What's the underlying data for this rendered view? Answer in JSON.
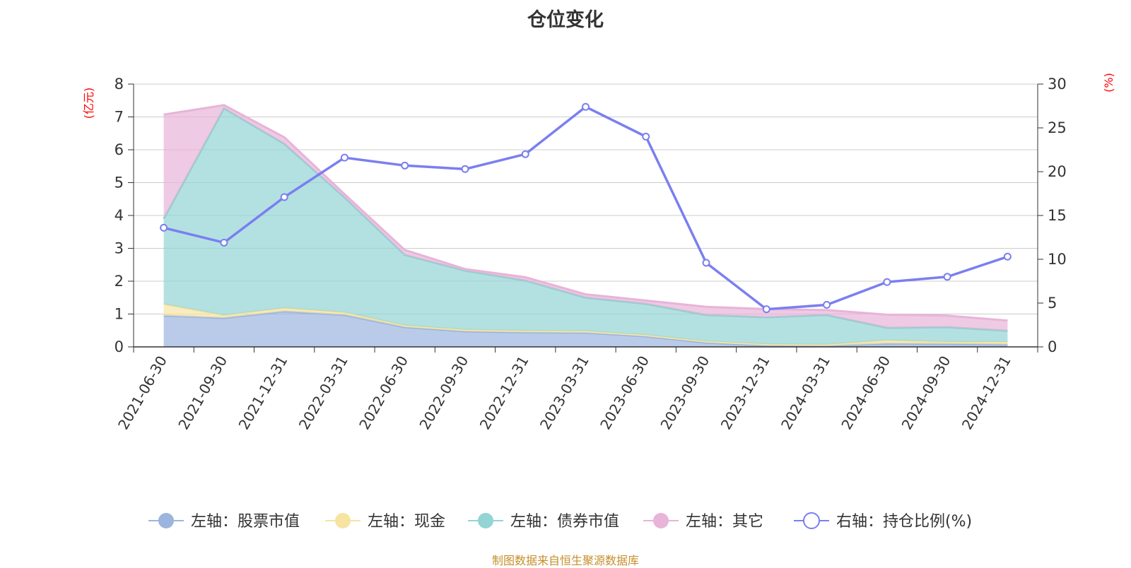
{
  "chart_data": {
    "type": "area",
    "title": "仓位变化",
    "source_note": "制图数据来自恒生聚源数据库",
    "categories": [
      "2021-06-30",
      "2021-09-30",
      "2021-12-31",
      "2022-03-31",
      "2022-06-30",
      "2022-09-30",
      "2022-12-31",
      "2023-03-31",
      "2023-06-30",
      "2023-09-30",
      "2023-12-31",
      "2024-03-31",
      "2024-06-30",
      "2024-09-30",
      "2024-12-31"
    ],
    "left_axis": {
      "unit": "(亿元)",
      "ylim": [
        0,
        8
      ],
      "ticks": [
        "0",
        "1",
        "2",
        "3",
        "4",
        "5",
        "6",
        "7",
        "8"
      ]
    },
    "right_axis": {
      "unit": "(%)",
      "ylim": [
        0,
        30
      ],
      "ticks": [
        "0",
        "5",
        "10",
        "15",
        "20",
        "25",
        "30"
      ]
    },
    "stacked_series": [
      {
        "name": "左轴：股票市值",
        "color": "#9bb5df",
        "values": [
          0.95,
          0.88,
          1.08,
          0.97,
          0.6,
          0.47,
          0.44,
          0.43,
          0.32,
          0.13,
          0.04,
          0.03,
          0.1,
          0.09,
          0.07
        ]
      },
      {
        "name": "左轴：现金",
        "color": "#f7e4a3",
        "values": [
          0.35,
          0.08,
          0.1,
          0.08,
          0.05,
          0.05,
          0.05,
          0.05,
          0.04,
          0.04,
          0.04,
          0.04,
          0.1,
          0.06,
          0.08
        ]
      },
      {
        "name": "左轴：债券市值",
        "color": "#93d4d4",
        "values": [
          2.6,
          6.3,
          5.0,
          3.5,
          2.15,
          1.8,
          1.53,
          1.02,
          0.95,
          0.8,
          0.82,
          0.9,
          0.38,
          0.45,
          0.34
        ]
      },
      {
        "name": "左轴：其它",
        "color": "#e8b4d8",
        "values": [
          3.17,
          0.1,
          0.2,
          0.1,
          0.15,
          0.05,
          0.1,
          0.1,
          0.1,
          0.25,
          0.25,
          0.15,
          0.4,
          0.35,
          0.31
        ]
      }
    ],
    "line_series": {
      "name": "右轴：持仓比例(%)",
      "color": "#7a7ff0",
      "values": [
        13.6,
        11.9,
        17.1,
        21.6,
        20.7,
        20.3,
        22.0,
        27.4,
        24.0,
        9.6,
        4.3,
        4.8,
        7.4,
        8.0,
        10.3
      ]
    }
  }
}
